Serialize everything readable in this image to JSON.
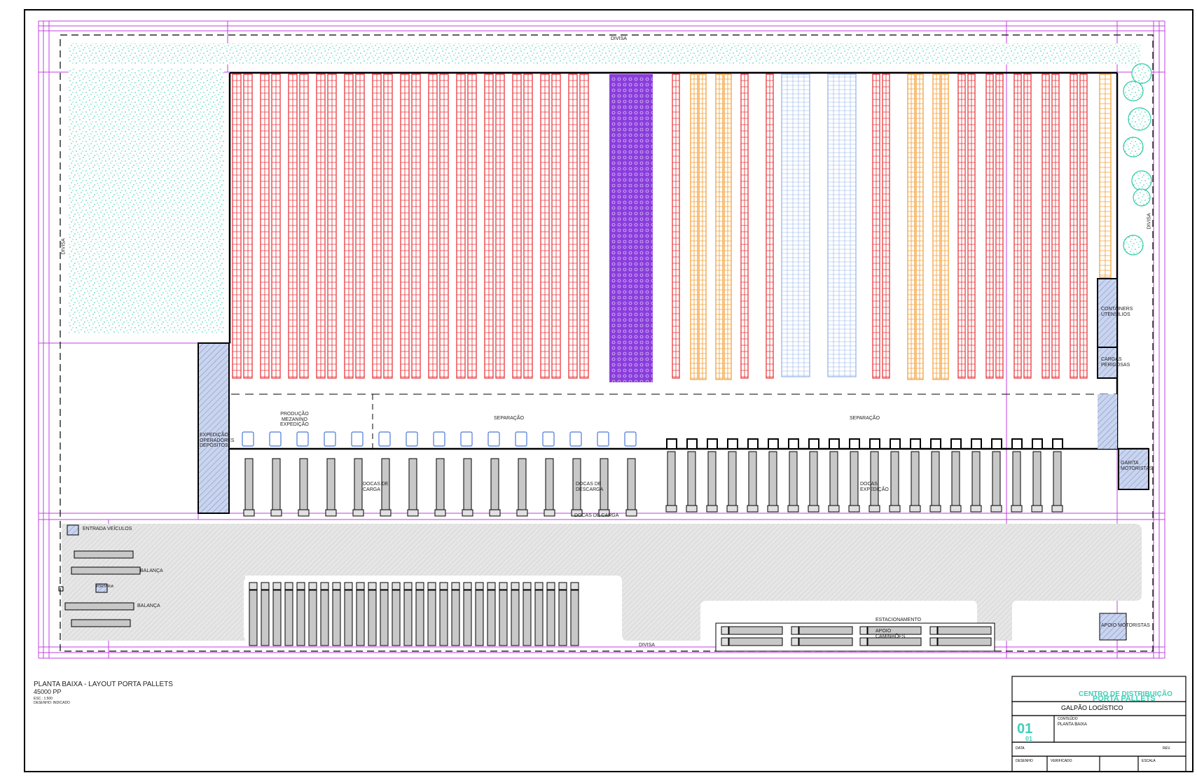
{
  "labels": {
    "divisa_top": "DIVISA",
    "divisa_left": "DIVISA",
    "divisa_right": "DIVISA",
    "divisa_bottom": "DIVISA",
    "producao_mezanino": "PRODUÇÃO\nMEZANINO\nEXPEDIÇÃO",
    "separacao_left": "SEPARAÇÃO",
    "separacao_right": "SEPARAÇÃO",
    "docas_left": "DOCAS DE\nCARGA",
    "docas_mid": "DOCAS DE\nDESCARGA",
    "docas_right": "DOCAS\nEXPEDIÇÃO",
    "docas_row_caption": "DOCAS DE CARGA",
    "expedicao_side": "EXPEDIÇÃO\nOPERADORES\nDEPÓSITOS",
    "container_side_1": "CONTAINERS\nUTENSÍLIOS",
    "container_side_2": "CARGAS\nPERIGOSAS",
    "garita_right": "GARITA\nMOTORISTAS",
    "deposito_bottom_right": "APOIO MOTORISTAS",
    "balanca_1": "BALANÇA",
    "balanca_2": "BALANÇA",
    "portaria": "PORTARIA",
    "entrada_veiculos": "ENTRADA VEÍCULOS",
    "estac_caminhoes": "ESTACIONAMENTO",
    "estac_sub": "APOIO\nCAMINHÕES"
  },
  "drawing_info": {
    "title": "PLANTA BAIXA - LAYOUT PORTA PALLETS",
    "code": "45000 PP",
    "scale": "ESC.: 1:500",
    "note": "DESENHO: INDICADO"
  },
  "title_block": {
    "company_line1": "CENTRO DE DISTRIBUIÇÃO",
    "company_line2": "PORTA PALLETS",
    "project": "GALPÃO LOGÍSTICO",
    "sheet_number": "01",
    "sheet_total": "01",
    "sheet_label": "CONTEÚDO",
    "sheet_desc": "PLANTA BAIXA",
    "date_label": "DATA",
    "revision_label": "REV.",
    "drawn_label": "DESENHO",
    "check_label": "VERIFICADO",
    "scale_label": "ESCALA"
  },
  "colors": {
    "rack_red": "#e8262b",
    "rack_purple": "#8a3ddc",
    "rack_orange": "#f39a2b",
    "rack_blue": "#8fb0e8",
    "grass": "#2ec9a8",
    "grid_magenta": "#c040e0",
    "hatch_blue": "#b8c8ea",
    "paving": "#e4e4e4",
    "truck_gray": "#c8c8c8",
    "teal_text": "#3fcfb8"
  }
}
